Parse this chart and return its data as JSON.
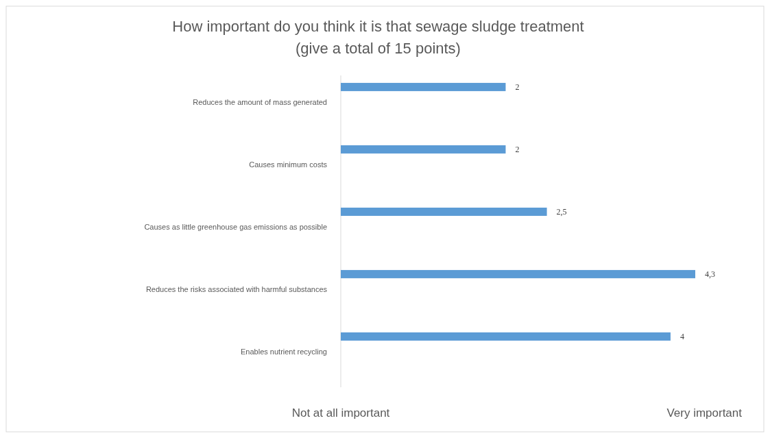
{
  "chart_data": {
    "type": "bar",
    "orientation": "horizontal",
    "title": "How important do you think it is that sewage sludge treatment\n(give a total of 15 points)",
    "categories": [
      "Reduces the amount of mass generated",
      "Causes minimum costs",
      "Causes as little greenhouse gas emissions as possible",
      "Reduces the risks associated with harmful substances",
      "Enables nutrient recycling"
    ],
    "values": [
      2,
      2,
      2.5,
      4.3,
      4
    ],
    "value_labels": [
      "2",
      "2",
      "2,5",
      "4,3",
      "4"
    ],
    "color": "#5b9bd5",
    "annotations": [
      "Not at all important",
      "Very important"
    ]
  }
}
